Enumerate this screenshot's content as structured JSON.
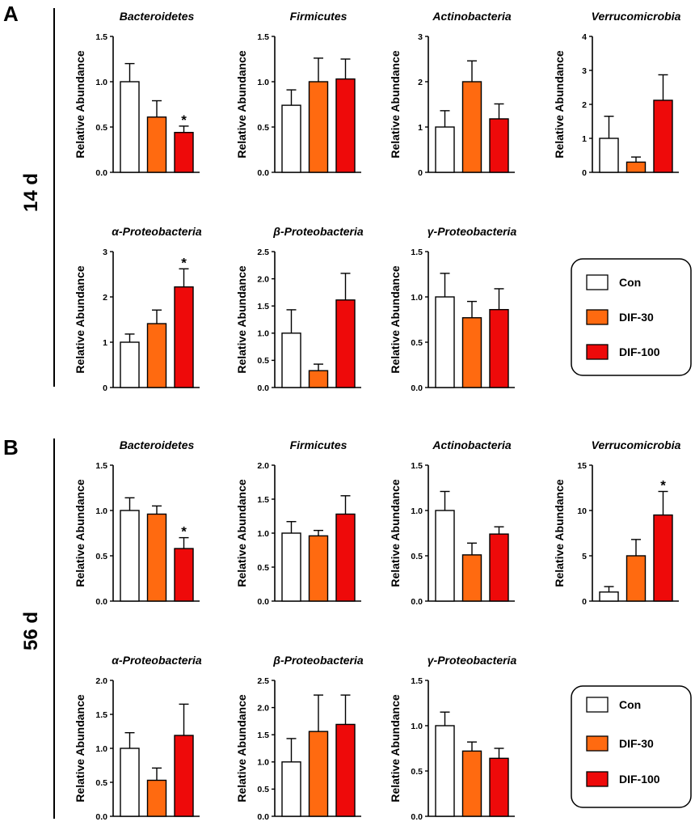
{
  "panels": [
    {
      "letter": "A",
      "label": "14 d"
    },
    {
      "letter": "B",
      "label": "56 d"
    }
  ],
  "legend": {
    "items": [
      {
        "name": "Con",
        "color": "#ffffff"
      },
      {
        "name": "DIF-30",
        "color": "#ff6a10"
      },
      {
        "name": "DIF-100",
        "color": "#ee0a0a"
      }
    ]
  },
  "chart_data": [
    {
      "type": "bar",
      "panel": "A",
      "title": "Bacteroidetes",
      "ylabel": "Relative Abundance",
      "categories": [
        "Con",
        "DIF-30",
        "DIF-100"
      ],
      "values": [
        1.0,
        0.61,
        0.44
      ],
      "errors": [
        0.2,
        0.18,
        0.07
      ],
      "significance": [
        "",
        "",
        "*"
      ],
      "ylim": [
        0,
        1.5
      ],
      "yticks": [
        "0.0",
        "0.5",
        "1.0",
        "1.5"
      ]
    },
    {
      "type": "bar",
      "panel": "A",
      "title": "Firmicutes",
      "ylabel": "Relative Abundance",
      "categories": [
        "Con",
        "DIF-30",
        "DIF-100"
      ],
      "values": [
        0.74,
        1.0,
        1.03
      ],
      "errors": [
        0.17,
        0.26,
        0.22
      ],
      "significance": [
        "",
        "",
        ""
      ],
      "ylim": [
        0,
        1.5
      ],
      "yticks": [
        "0.0",
        "0.5",
        "1.0",
        "1.5"
      ]
    },
    {
      "type": "bar",
      "panel": "A",
      "title": "Actinobacteria",
      "ylabel": "Relative Abundance",
      "categories": [
        "Con",
        "DIF-30",
        "DIF-100"
      ],
      "values": [
        1.0,
        2.0,
        1.18
      ],
      "errors": [
        0.36,
        0.46,
        0.33
      ],
      "significance": [
        "",
        "",
        ""
      ],
      "ylim": [
        0,
        3
      ],
      "yticks": [
        "0",
        "1",
        "2",
        "3"
      ]
    },
    {
      "type": "bar",
      "panel": "A",
      "title": "Verrucomicrobia",
      "ylabel": "Relative Abundance",
      "categories": [
        "Con",
        "DIF-30",
        "DIF-100"
      ],
      "values": [
        1.0,
        0.3,
        2.12
      ],
      "errors": [
        0.65,
        0.15,
        0.75
      ],
      "significance": [
        "",
        "",
        ""
      ],
      "ylim": [
        0,
        4
      ],
      "yticks": [
        "0",
        "1",
        "2",
        "3",
        "4"
      ]
    },
    {
      "type": "bar",
      "panel": "A",
      "title": "α-Proteobacteria",
      "ylabel": "Relative Abundance",
      "categories": [
        "Con",
        "DIF-30",
        "DIF-100"
      ],
      "values": [
        1.0,
        1.41,
        2.22
      ],
      "errors": [
        0.18,
        0.3,
        0.4
      ],
      "significance": [
        "",
        "",
        "*"
      ],
      "ylim": [
        0,
        3
      ],
      "yticks": [
        "0",
        "1",
        "2",
        "3"
      ]
    },
    {
      "type": "bar",
      "panel": "A",
      "title": "β-Proteobacteria",
      "ylabel": "Relative Abundance",
      "categories": [
        "Con",
        "DIF-30",
        "DIF-100"
      ],
      "values": [
        1.0,
        0.31,
        1.61
      ],
      "errors": [
        0.43,
        0.12,
        0.49
      ],
      "significance": [
        "",
        "",
        ""
      ],
      "ylim": [
        0,
        2.5
      ],
      "yticks": [
        "0.0",
        "0.5",
        "1.0",
        "1.5",
        "2.0",
        "2.5"
      ]
    },
    {
      "type": "bar",
      "panel": "A",
      "title": "γ-Proteobacteria",
      "ylabel": "Relative Abundance",
      "categories": [
        "Con",
        "DIF-30",
        "DIF-100"
      ],
      "values": [
        1.0,
        0.77,
        0.86
      ],
      "errors": [
        0.26,
        0.18,
        0.23
      ],
      "significance": [
        "",
        "",
        ""
      ],
      "ylim": [
        0,
        1.5
      ],
      "yticks": [
        "0.0",
        "0.5",
        "1.0",
        "1.5"
      ]
    },
    {
      "type": "bar",
      "panel": "B",
      "title": "Bacteroidetes",
      "ylabel": "Relative Abundance",
      "categories": [
        "Con",
        "DIF-30",
        "DIF-100"
      ],
      "values": [
        1.0,
        0.96,
        0.58
      ],
      "errors": [
        0.14,
        0.09,
        0.12
      ],
      "significance": [
        "",
        "",
        "*"
      ],
      "ylim": [
        0,
        1.5
      ],
      "yticks": [
        "0.0",
        "0.5",
        "1.0",
        "1.5"
      ]
    },
    {
      "type": "bar",
      "panel": "B",
      "title": "Firmicutes",
      "ylabel": "Relative Abundance",
      "categories": [
        "Con",
        "DIF-30",
        "DIF-100"
      ],
      "values": [
        1.0,
        0.96,
        1.28
      ],
      "errors": [
        0.17,
        0.08,
        0.27
      ],
      "significance": [
        "",
        "",
        ""
      ],
      "ylim": [
        0,
        2.0
      ],
      "yticks": [
        "0.0",
        "0.5",
        "1.0",
        "1.5",
        "2.0"
      ]
    },
    {
      "type": "bar",
      "panel": "B",
      "title": "Actinobacteria",
      "ylabel": "Relative Abundance",
      "categories": [
        "Con",
        "DIF-30",
        "DIF-100"
      ],
      "values": [
        1.0,
        0.51,
        0.74
      ],
      "errors": [
        0.21,
        0.13,
        0.08
      ],
      "significance": [
        "",
        "",
        ""
      ],
      "ylim": [
        0,
        1.5
      ],
      "yticks": [
        "0.0",
        "0.5",
        "1.0",
        "1.5"
      ]
    },
    {
      "type": "bar",
      "panel": "B",
      "title": "Verrucomicrobia",
      "ylabel": "Relative Abundance",
      "categories": [
        "Con",
        "DIF-30",
        "DIF-100"
      ],
      "values": [
        1.0,
        5.0,
        9.5
      ],
      "errors": [
        0.6,
        1.8,
        2.6
      ],
      "significance": [
        "",
        "",
        "*"
      ],
      "ylim": [
        0,
        15
      ],
      "yticks": [
        "0",
        "5",
        "10",
        "15"
      ]
    },
    {
      "type": "bar",
      "panel": "B",
      "title": "α-Proteobacteria",
      "ylabel": "Relative Abundance",
      "categories": [
        "Con",
        "DIF-30",
        "DIF-100"
      ],
      "values": [
        1.0,
        0.53,
        1.19
      ],
      "errors": [
        0.23,
        0.18,
        0.46
      ],
      "significance": [
        "",
        "",
        ""
      ],
      "ylim": [
        0,
        2.0
      ],
      "yticks": [
        "0.0",
        "0.5",
        "1.0",
        "1.5",
        "2.0"
      ]
    },
    {
      "type": "bar",
      "panel": "B",
      "title": "β-Proteobacteria",
      "ylabel": "Relative Abundance",
      "categories": [
        "Con",
        "DIF-30",
        "DIF-100"
      ],
      "values": [
        1.0,
        1.56,
        1.69
      ],
      "errors": [
        0.43,
        0.67,
        0.54
      ],
      "significance": [
        "",
        "",
        ""
      ],
      "ylim": [
        0,
        2.5
      ],
      "yticks": [
        "0.0",
        "0.5",
        "1.0",
        "1.5",
        "2.0",
        "2.5"
      ]
    },
    {
      "type": "bar",
      "panel": "B",
      "title": "γ-Proteobacteria",
      "ylabel": "Relative Abundance",
      "categories": [
        "Con",
        "DIF-30",
        "DIF-100"
      ],
      "values": [
        1.0,
        0.72,
        0.64
      ],
      "errors": [
        0.15,
        0.1,
        0.11
      ],
      "significance": [
        "",
        "",
        ""
      ],
      "ylim": [
        0,
        1.5
      ],
      "yticks": [
        "0.0",
        "0.5",
        "1.0",
        "1.5"
      ]
    }
  ]
}
